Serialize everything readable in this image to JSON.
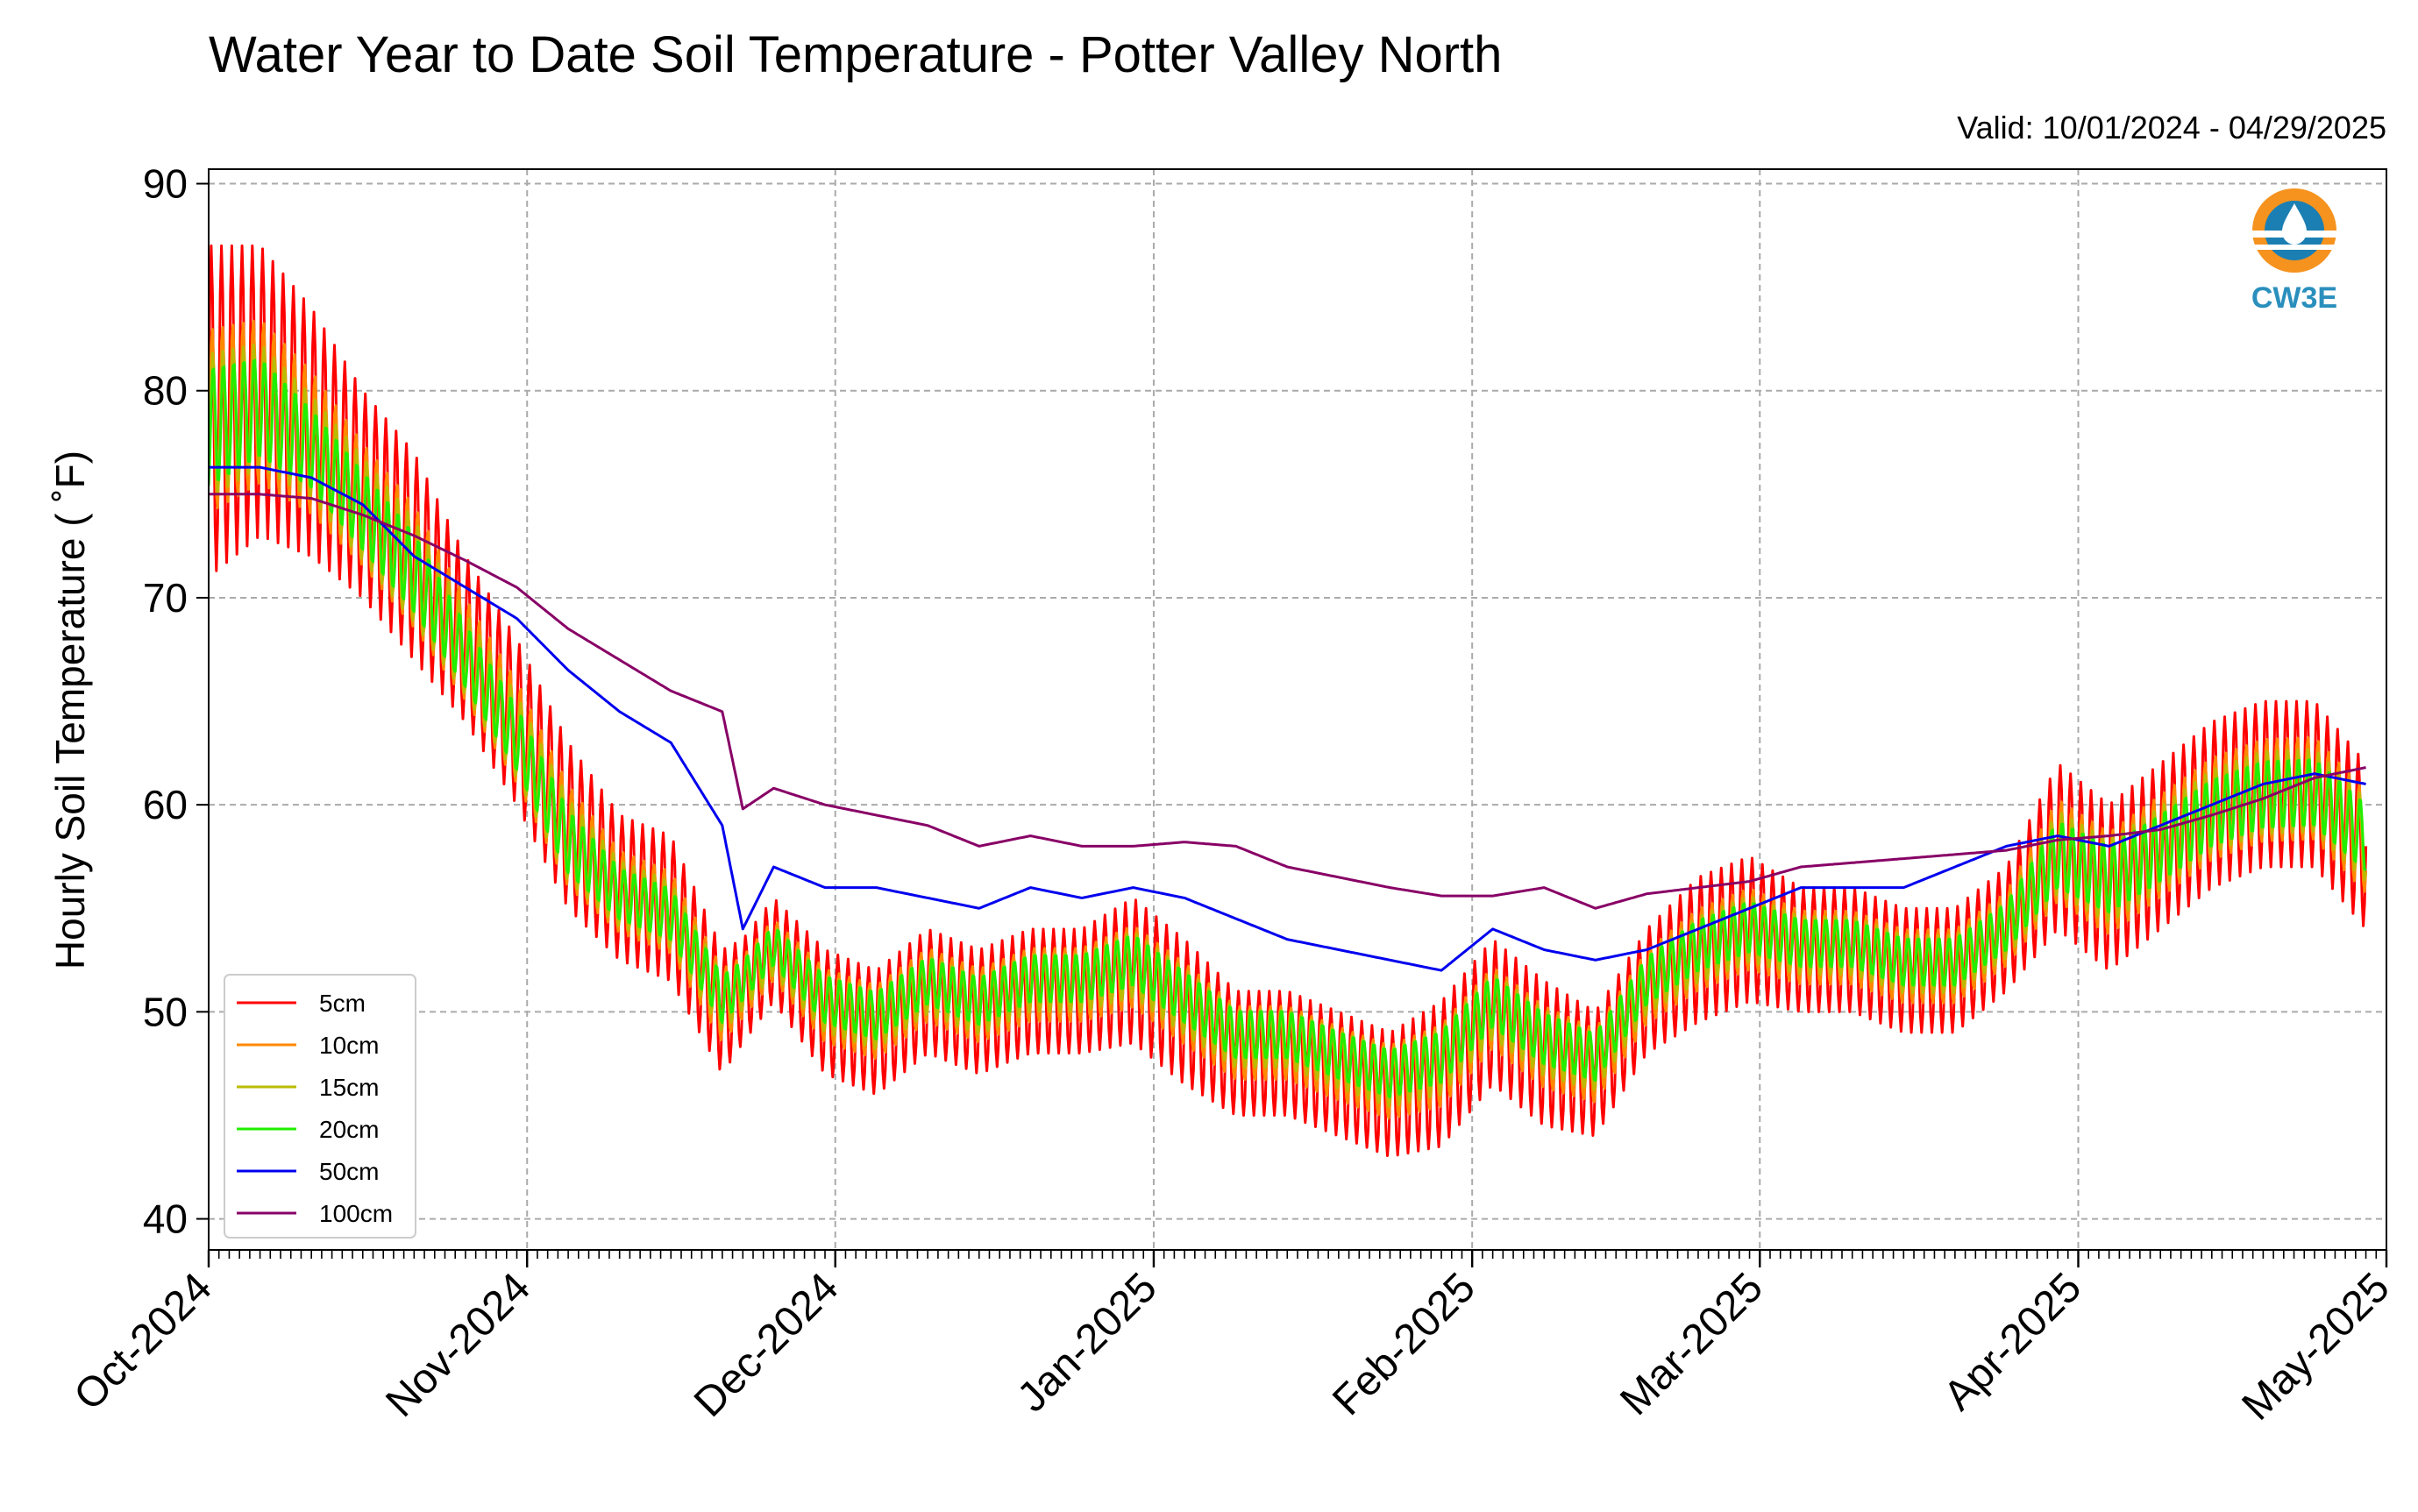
{
  "chart_data": {
    "type": "line",
    "title": "Water Year to Date Soil Temperature - Potter Valley North",
    "subtitle": "Valid: 10/01/2024 - 04/29/2025",
    "xlabel": "",
    "ylabel": "Hourly Soil Temperature ( ˚F)",
    "xlim": [
      "2024-10-01",
      "2025-05-01"
    ],
    "ylim": [
      38.5,
      90.7
    ],
    "grid": true,
    "legend_position": "lower-left",
    "logo_text": "CW3E",
    "x_ticks": [
      {
        "date": "2024-10-01",
        "label": "Oct-2024"
      },
      {
        "date": "2024-11-01",
        "label": "Nov-2024"
      },
      {
        "date": "2024-12-01",
        "label": "Dec-2024"
      },
      {
        "date": "2025-01-01",
        "label": "Jan-2025"
      },
      {
        "date": "2025-02-01",
        "label": "Feb-2025"
      },
      {
        "date": "2025-03-01",
        "label": "Mar-2025"
      },
      {
        "date": "2025-04-01",
        "label": "Apr-2025"
      },
      {
        "date": "2025-05-01",
        "label": "May-2025"
      }
    ],
    "y_ticks": [
      40,
      50,
      60,
      70,
      80,
      90
    ],
    "x": [
      "2024-10-01",
      "2024-10-06",
      "2024-10-11",
      "2024-10-16",
      "2024-10-21",
      "2024-10-26",
      "2024-10-31",
      "2024-11-05",
      "2024-11-10",
      "2024-11-15",
      "2024-11-20",
      "2024-11-22",
      "2024-11-25",
      "2024-11-30",
      "2024-12-05",
      "2024-12-10",
      "2024-12-15",
      "2024-12-20",
      "2024-12-25",
      "2024-12-30",
      "2025-01-04",
      "2025-01-09",
      "2025-01-14",
      "2025-01-19",
      "2025-01-24",
      "2025-01-29",
      "2025-02-03",
      "2025-02-08",
      "2025-02-13",
      "2025-02-18",
      "2025-02-23",
      "2025-02-28",
      "2025-03-05",
      "2025-03-10",
      "2025-03-15",
      "2025-03-20",
      "2025-03-25",
      "2025-03-30",
      "2025-04-04",
      "2025-04-09",
      "2025-04-14",
      "2025-04-19",
      "2025-04-24",
      "2025-04-29"
    ],
    "series": [
      {
        "name": "5cm",
        "color": "#ff0000",
        "amplitude": [
          8,
          7,
          6,
          5,
          5,
          4,
          4,
          4,
          3.5,
          3.5,
          3,
          2.5,
          2.5,
          3,
          3,
          3,
          3,
          3,
          3,
          3.5,
          3.5,
          3,
          3,
          3,
          3,
          3.5,
          3.5,
          3.5,
          3,
          3,
          3.5,
          3.5,
          3,
          3,
          3,
          3,
          3,
          4,
          4,
          4,
          4,
          4,
          4,
          4
        ],
        "values": [
          79,
          80,
          78,
          75,
          72,
          68,
          64,
          59,
          56,
          55,
          50,
          51,
          53,
          50,
          49,
          51,
          50,
          51,
          51,
          52,
          50,
          48,
          48,
          47,
          46,
          47,
          50,
          48,
          47,
          51,
          53,
          54,
          53,
          53,
          52,
          52,
          54,
          58,
          56,
          58,
          60,
          61,
          61,
          58
        ]
      },
      {
        "name": "10cm",
        "color": "#ff8800",
        "amplitude": [
          4.5,
          4,
          3.5,
          3,
          3,
          2.5,
          2.5,
          2.5,
          2,
          2,
          1.8,
          1.5,
          1.5,
          1.8,
          1.8,
          1.8,
          1.8,
          1.8,
          1.8,
          2,
          2,
          1.8,
          1.8,
          1.8,
          1.8,
          2,
          2,
          2,
          1.8,
          1.8,
          2,
          2,
          1.8,
          1.8,
          1.8,
          1.8,
          1.8,
          2.5,
          2.5,
          2.5,
          2.5,
          2.5,
          2.5,
          2.5
        ],
        "values": [
          78.5,
          79.5,
          77.5,
          74.5,
          71.5,
          67.5,
          63.5,
          58.5,
          55.8,
          54.8,
          50.3,
          51.2,
          53,
          50.3,
          49.5,
          51.3,
          50.3,
          51.3,
          51.3,
          52.2,
          50.4,
          48.5,
          48.5,
          47.5,
          46.6,
          47.4,
          50.2,
          48.3,
          47.4,
          51.2,
          53,
          54,
          53.1,
          53.1,
          52.2,
          52.2,
          54,
          57.8,
          56.2,
          58,
          59.8,
          60.7,
          60.8,
          58.2
        ]
      },
      {
        "name": "15cm",
        "color": "#bbbb00",
        "amplitude": [
          3.5,
          3,
          2.5,
          2.5,
          2.5,
          2,
          2,
          2,
          1.6,
          1.6,
          1.4,
          1.2,
          1.2,
          1.4,
          1.4,
          1.4,
          1.4,
          1.4,
          1.4,
          1.6,
          1.6,
          1.4,
          1.4,
          1.4,
          1.4,
          1.6,
          1.6,
          1.6,
          1.4,
          1.4,
          1.6,
          1.6,
          1.4,
          1.4,
          1.4,
          1.4,
          1.4,
          2,
          2,
          2,
          2,
          2,
          2,
          2
        ],
        "values": [
          78.3,
          79.3,
          77.3,
          74.3,
          71.3,
          67.3,
          63.3,
          58.3,
          55.7,
          54.7,
          50.4,
          51.3,
          53,
          50.4,
          49.6,
          51.3,
          50.3,
          51.4,
          51.4,
          52.3,
          50.5,
          48.7,
          48.7,
          47.7,
          46.8,
          47.6,
          50.3,
          48.5,
          47.6,
          51.3,
          53,
          54,
          53.2,
          53.2,
          52.3,
          52.3,
          54,
          57.7,
          56.3,
          57.9,
          59.7,
          60.6,
          60.7,
          58.3
        ]
      },
      {
        "name": "20cm",
        "color": "#22ee00",
        "amplitude": [
          3,
          2.5,
          2,
          2,
          2,
          1.6,
          1.6,
          1.6,
          1.3,
          1.3,
          1.2,
          1,
          1,
          1.2,
          1.2,
          1.2,
          1.2,
          1.2,
          1.2,
          1.3,
          1.3,
          1.2,
          1.2,
          1.2,
          1.2,
          1.3,
          1.3,
          1.3,
          1.2,
          1.2,
          1.3,
          1.3,
          1.2,
          1.2,
          1.2,
          1.2,
          1.2,
          1.7,
          1.7,
          1.7,
          1.7,
          1.7,
          1.7,
          1.7
        ],
        "values": [
          78.2,
          79.2,
          77.2,
          74.2,
          71.2,
          67.2,
          63.2,
          58.2,
          55.7,
          54.7,
          50.6,
          51.5,
          53.2,
          50.6,
          49.8,
          51.5,
          50.5,
          51.6,
          51.6,
          52.5,
          50.7,
          48.9,
          48.9,
          47.9,
          47,
          47.8,
          50.5,
          48.7,
          47.8,
          51.5,
          53.2,
          54.1,
          53.3,
          53.3,
          52.4,
          52.4,
          54.1,
          57.6,
          56.4,
          57.9,
          59.6,
          60.5,
          60.6,
          58.4
        ]
      },
      {
        "name": "50cm",
        "color": "#0000ee",
        "amplitude": [
          0
        ],
        "values": [
          76.3,
          76.3,
          75.8,
          74.5,
          72,
          70.5,
          69,
          66.5,
          64.5,
          63,
          59,
          54,
          57,
          56,
          56,
          55.5,
          55,
          56,
          55.5,
          56,
          55.5,
          54.5,
          53.5,
          53,
          52.5,
          52,
          54,
          53,
          52.5,
          53,
          54,
          55,
          56,
          56,
          56,
          57,
          58,
          58.5,
          58,
          59,
          60,
          61,
          61.5,
          61
        ]
      },
      {
        "name": "100cm",
        "color": "#880066",
        "amplitude": [
          0
        ],
        "values": [
          75,
          75,
          74.8,
          74,
          73,
          71.8,
          70.5,
          68.5,
          67,
          65.5,
          64.5,
          59.8,
          60.8,
          60,
          59.5,
          59,
          58,
          58.5,
          58,
          58,
          58.2,
          58,
          57,
          56.5,
          56,
          55.6,
          55.6,
          56,
          55,
          55.7,
          56,
          56.3,
          57,
          57.2,
          57.4,
          57.6,
          57.8,
          58.3,
          58.5,
          58.8,
          59.5,
          60.3,
          61.3,
          61.8
        ]
      }
    ]
  }
}
